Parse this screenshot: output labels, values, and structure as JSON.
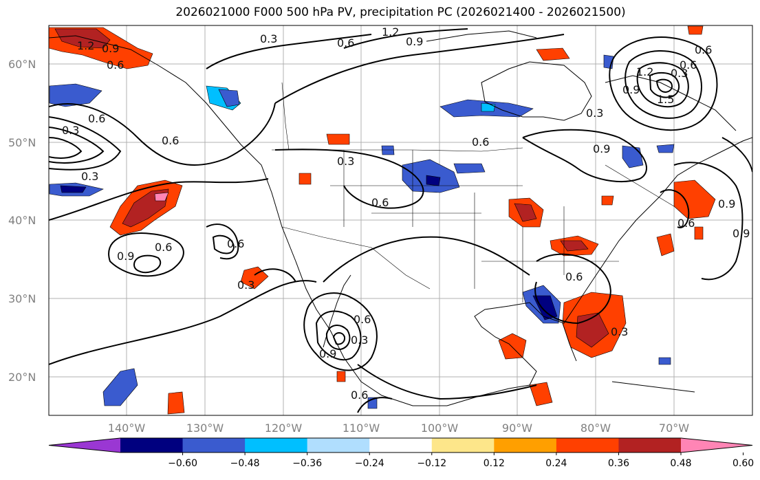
{
  "title": "2026021000 F000 500 hPa PV, precipitation PC (2026021400 - 2026021500)",
  "lat_labels": [
    "60°N",
    "50°N",
    "40°N",
    "30°N",
    "20°N"
  ],
  "lon_labels": [
    "140°W",
    "130°W",
    "120°W",
    "110°W",
    "100°W",
    "90°W",
    "80°W",
    "70°W"
  ],
  "contour_labels": [
    "1.2",
    "0.9",
    "0.6",
    "0.3",
    "1.2",
    "0.9",
    "0.6",
    "0.3",
    "0.6",
    "0.3",
    "0.6",
    "0.9",
    "0.6",
    "0.3",
    "0.6",
    "0.9",
    "0.6",
    "0.3",
    "0.6",
    "0.6",
    "0.9",
    "0.3",
    "0.6",
    "0.9",
    "0.6",
    "0.3",
    "0.6",
    "0.9",
    "0.6",
    "0.3",
    "1.5",
    "1.2",
    "0.9",
    "0.6",
    "0.3"
  ],
  "colorbar": {
    "colors": [
      "#9a37d3",
      "#00007f",
      "#3a5bcf",
      "#00bfff",
      "#b0defe",
      "#ffffff",
      "#fde68a",
      "#ff9f00",
      "#ff4000",
      "#b22222",
      "#ff85b5"
    ],
    "ticks": [
      "−0.60",
      "−0.48",
      "−0.36",
      "−0.24",
      "−0.12",
      "0.12",
      "0.24",
      "0.36",
      "0.48",
      "0.60"
    ]
  },
  "map_data": {
    "region": "North America",
    "lon_range": [
      -150,
      -60
    ],
    "lat_range": [
      15,
      65
    ],
    "fields": [
      "500 hPa PV contours",
      "precipitation PC shading"
    ]
  }
}
